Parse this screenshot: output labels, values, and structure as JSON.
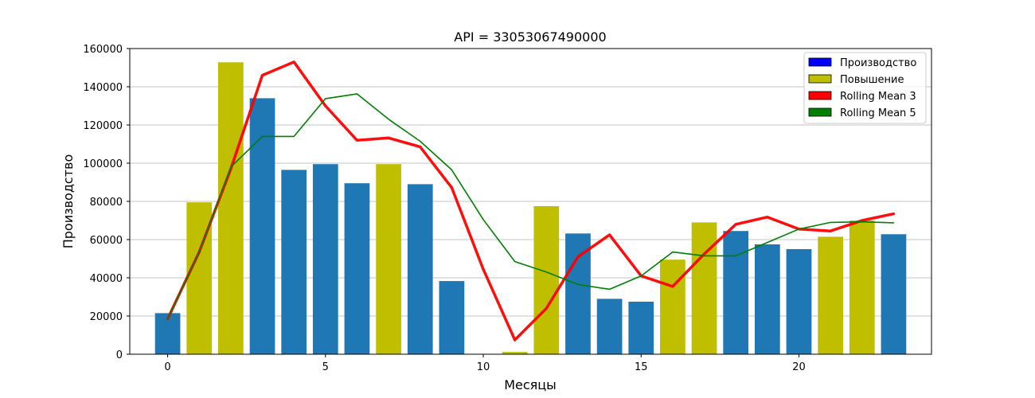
{
  "chart_data": {
    "type": "bar",
    "title": "API = 33053067490000",
    "xlabel": "Месяцы",
    "ylabel": "Производство",
    "xlim": [
      -1.2,
      24.2
    ],
    "ylim": [
      0,
      160000
    ],
    "xticks": [
      0,
      5,
      10,
      15,
      20
    ],
    "yticks": [
      0,
      20000,
      40000,
      60000,
      80000,
      100000,
      120000,
      140000,
      160000
    ],
    "grid": "horizontal",
    "legend_position": "top-right",
    "colors": {
      "production": "#1f77b4",
      "increase": "#bfbf00",
      "rolling3": "#ff0000",
      "rolling5": "#008000",
      "legend_production": "#0000ff",
      "legend_increase": "#bfbf00",
      "legend_rolling3": "#ff0000",
      "legend_rolling5": "#008000"
    },
    "legend": [
      "Производство",
      "Повышение",
      "Rolling Mean 3",
      "Rolling Mean 5"
    ],
    "bars": {
      "x": [
        0,
        1,
        2,
        3,
        4,
        5,
        6,
        7,
        8,
        9,
        10,
        11,
        12,
        13,
        14,
        15,
        16,
        17,
        18,
        19,
        20,
        21,
        22,
        23
      ],
      "values": [
        21500,
        79500,
        152800,
        134000,
        96500,
        99500,
        89500,
        99500,
        89000,
        38300,
        0,
        1200,
        77500,
        63200,
        29000,
        27500,
        49500,
        69000,
        64500,
        57500,
        55000,
        61500,
        70000,
        62800
      ],
      "increase": [
        false,
        true,
        true,
        false,
        false,
        false,
        false,
        true,
        false,
        false,
        false,
        true,
        true,
        false,
        false,
        false,
        true,
        true,
        false,
        false,
        false,
        true,
        true,
        false
      ]
    },
    "series": [
      {
        "name": "Rolling Mean 3",
        "x": [
          0,
          1,
          2,
          3,
          4,
          5,
          6,
          7,
          8,
          9,
          10,
          11,
          12,
          13,
          14,
          15,
          16,
          17,
          18,
          19,
          20,
          21,
          22,
          23
        ],
        "values": [
          18500,
          53500,
          97000,
          146000,
          153000,
          130000,
          112000,
          113200,
          108600,
          87200,
          44500,
          7500,
          24000,
          51000,
          62500,
          41000,
          35500,
          52500,
          68000,
          71800,
          65500,
          64500,
          70000,
          73500
        ]
      },
      {
        "name": "Rolling Mean 5",
        "x": [
          0,
          1,
          2,
          3,
          4,
          5,
          6,
          7,
          8,
          9,
          10,
          11,
          12,
          13,
          14,
          15,
          16,
          17,
          18,
          19,
          20,
          21,
          22,
          23
        ],
        "values": [
          18500,
          53500,
          98000,
          114000,
          114000,
          133800,
          136300,
          123000,
          111500,
          96500,
          70500,
          48500,
          43000,
          36500,
          34000,
          41000,
          53500,
          51500,
          51500,
          58500,
          65500,
          69000,
          69300,
          68800
        ]
      }
    ]
  }
}
